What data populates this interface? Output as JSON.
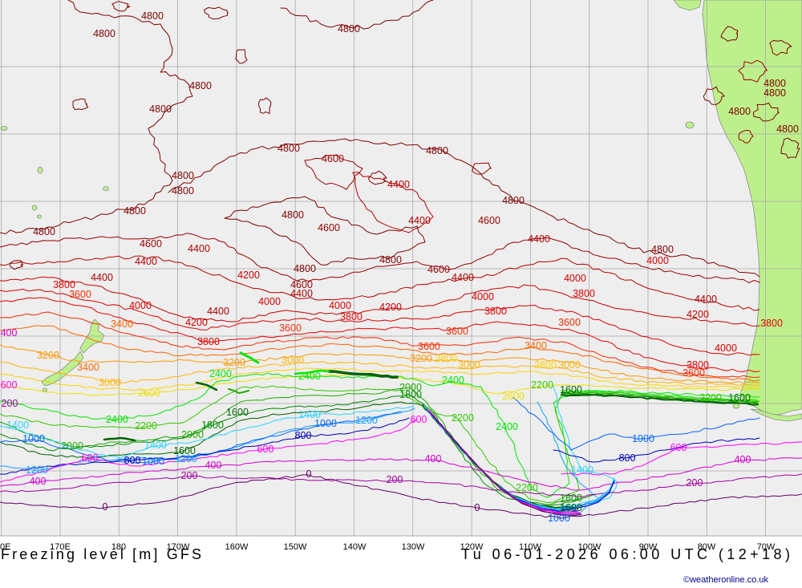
{
  "title": "Freezing level [m] GFS",
  "valid_time": "Tu 06-01-2026 06:00 UTC (12+18)",
  "credit": "©weatheronline.co.uk",
  "longitude_ticks": [
    "0E",
    "170E",
    "180",
    "170W",
    "160W",
    "150W",
    "140W",
    "130W",
    "120W",
    "110W",
    "100W",
    "90W",
    "80W",
    "70W"
  ],
  "colors": {
    "ocean": "#eeeeee",
    "land": "#bdf08c",
    "coast": "#8c8c8c",
    "grid": "#a9a9a9",
    "credit": "#00008b",
    "background": "#ffffff"
  },
  "level_colors": {
    "4800": "#800000",
    "4600": "#990000",
    "4400": "#b40000",
    "4200": "#c80000",
    "4000": "#d80000",
    "3800": "#e80000",
    "3600": "#f52a00",
    "3400": "#ff6400",
    "3200": "#ff9600",
    "3000": "#ffb400",
    "2800": "#ffd200",
    "2600": "#f0e000",
    "2400": "#00e600",
    "2200": "#32c800",
    "2000": "#1eaa00",
    "1800": "#008c00",
    "1600": "#006400",
    "1400": "#28d2ff",
    "1200": "#14a0ff",
    "1000": "#0064ff",
    "800": "#0000b4",
    "600": "#ff00ff",
    "400": "#d200d2",
    "200": "#a000a0",
    "0": "#640064"
  },
  "contour_labels": [
    "4800",
    "4800",
    "4800",
    "4800",
    "4800",
    "4800",
    "4800",
    "4800",
    "4800",
    "4800",
    "4800",
    "4800",
    "4800",
    "4800",
    "4800",
    "4800",
    "4800",
    "4800",
    "4800",
    "4800",
    "4600",
    "4600",
    "4600",
    "4600",
    "4600",
    "4600",
    "4400",
    "4400",
    "4400",
    "4400",
    "4400",
    "4400",
    "4400",
    "4400",
    "4400",
    "4400",
    "4200",
    "4200",
    "4200",
    "4200",
    "4000",
    "4000",
    "4000",
    "4000",
    "4000",
    "4000",
    "4000",
    "3800",
    "3800",
    "3800",
    "3800",
    "3800",
    "3800",
    "3800",
    "3600",
    "3600",
    "3600",
    "3600",
    "3600",
    "3600",
    "3400",
    "3400",
    "3400",
    "3200",
    "3200",
    "3200",
    "3000",
    "3000",
    "3000",
    "3000",
    "2800",
    "2800",
    "2600",
    "2600",
    "2400",
    "2400",
    "2400",
    "2400",
    "2400",
    "2200",
    "2200",
    "2200",
    "2200",
    "2200",
    "2000",
    "2000",
    "2000",
    "1800",
    "1800",
    "1800",
    "1600",
    "1600",
    "1600",
    "1600",
    "1600",
    "1400",
    "1400",
    "1400",
    "1400",
    "1200",
    "1200",
    "1200",
    "1000",
    "1000",
    "1000",
    "1000",
    "1000",
    "800",
    "800",
    "800",
    "600",
    "600",
    "600",
    "600",
    "600",
    "400",
    "400",
    "400",
    "400",
    "400",
    "200",
    "200",
    "200",
    "200",
    "0",
    "0",
    "0"
  ]
}
